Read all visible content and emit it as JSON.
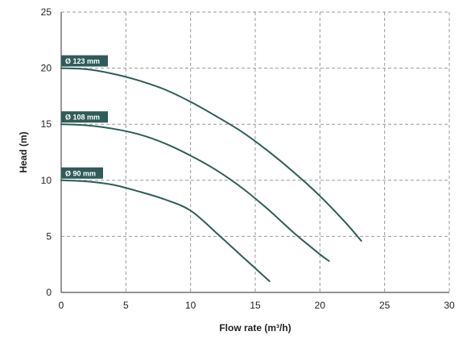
{
  "chart_data": {
    "type": "line",
    "xlabel": "Flow rate (m³/h)",
    "ylabel": "Head (m)",
    "xlim": [
      0,
      30
    ],
    "ylim": [
      0,
      25
    ],
    "xticks": [
      0,
      5,
      10,
      15,
      20,
      25,
      30
    ],
    "yticks": [
      0,
      5,
      10,
      15,
      20,
      25
    ],
    "grid": true,
    "grid_style": "dashed",
    "colors": {
      "line": "#2f5c59",
      "label_bg": "#2f5c59",
      "grid": "#9a9a9a",
      "axis": "#555555"
    },
    "series": [
      {
        "name": "Ø 123 mm",
        "x": [
          0,
          2,
          4,
          6,
          8,
          10,
          12,
          14,
          16,
          18,
          20,
          22,
          23.2
        ],
        "y": [
          20.0,
          19.9,
          19.5,
          18.9,
          18.1,
          17.0,
          15.7,
          14.3,
          12.6,
          10.7,
          8.6,
          6.2,
          4.6
        ]
      },
      {
        "name": "Ø 108 mm",
        "x": [
          0,
          2,
          4,
          6,
          8,
          10,
          12,
          14,
          16,
          18,
          20,
          20.7
        ],
        "y": [
          15.0,
          14.9,
          14.6,
          14.1,
          13.3,
          12.2,
          10.9,
          9.3,
          7.4,
          5.3,
          3.4,
          2.8
        ]
      },
      {
        "name": "Ø 90 mm",
        "x": [
          0,
          2,
          4,
          6,
          8,
          10,
          12,
          14,
          16.1
        ],
        "y": [
          10.0,
          9.9,
          9.6,
          9.0,
          8.3,
          7.3,
          5.3,
          3.2,
          1.0
        ]
      }
    ]
  }
}
